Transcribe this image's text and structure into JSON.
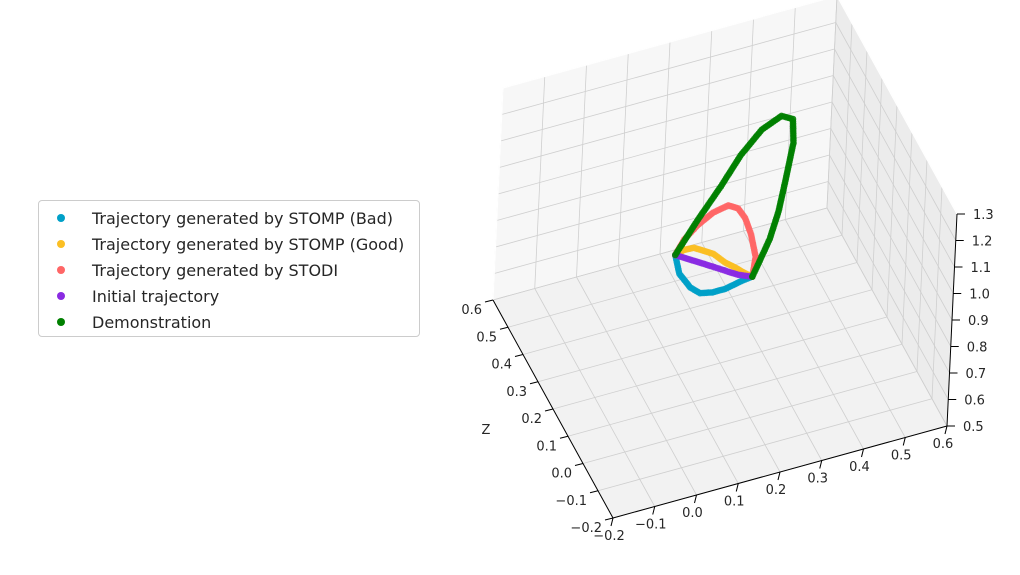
{
  "chart_data": {
    "type": "scatter3d",
    "title": "",
    "xlabel": "",
    "ylabel": "",
    "zlabel": "Z",
    "axis_a_ticks": [
      "−0.2",
      "−0.1",
      "0.0",
      "0.1",
      "0.2",
      "0.3",
      "0.4",
      "0.5",
      "0.6"
    ],
    "axis_b_ticks": [
      "−0.2",
      "−0.1",
      "0.0",
      "0.1",
      "0.2",
      "0.3",
      "0.4",
      "0.5",
      "0.6"
    ],
    "axis_z_ticks": [
      "0.5",
      "0.6",
      "0.7",
      "0.8",
      "0.9",
      "1.0",
      "1.1",
      "1.2",
      "1.3"
    ],
    "xlim": [
      -0.2,
      0.6
    ],
    "ylim": [
      -0.2,
      0.6
    ],
    "zlim": [
      0.5,
      1.3
    ],
    "grid": true,
    "legend_position": "left",
    "series": [
      {
        "name": "Trajectory generated by STOMP (Bad)",
        "color": "#00a0c8",
        "x": [
          0.0,
          0.02,
          0.05,
          0.09,
          0.14,
          0.19,
          0.23,
          0.26,
          0.28
        ],
        "y": [
          0.0,
          0.02,
          0.06,
          0.1,
          0.15,
          0.2,
          0.24,
          0.27,
          0.3
        ],
        "z": [
          1.2,
          1.1,
          1.0,
          0.92,
          0.85,
          0.79,
          0.75,
          0.72,
          0.7
        ]
      },
      {
        "name": "Trajectory generated by STOMP (Good)",
        "color": "#fbbf24",
        "x": [
          0.0,
          0.05,
          0.09,
          0.13,
          0.17,
          0.2,
          0.23,
          0.26,
          0.28
        ],
        "y": [
          0.0,
          0.04,
          0.08,
          0.12,
          0.16,
          0.2,
          0.24,
          0.27,
          0.3
        ],
        "z": [
          1.2,
          1.15,
          1.1,
          1.03,
          0.96,
          0.88,
          0.81,
          0.75,
          0.7
        ]
      },
      {
        "name": "Trajectory generated by STODI",
        "color": "#ff6666",
        "x": [
          0.0,
          0.05,
          0.1,
          0.16,
          0.22,
          0.26,
          0.29,
          0.3,
          0.29,
          0.28
        ],
        "y": [
          0.0,
          0.04,
          0.09,
          0.15,
          0.21,
          0.25,
          0.28,
          0.3,
          0.31,
          0.3
        ],
        "z": [
          1.2,
          1.19,
          1.17,
          1.13,
          1.07,
          1.0,
          0.92,
          0.84,
          0.76,
          0.7
        ]
      },
      {
        "name": "Initial trajectory",
        "color": "#8a2be2",
        "x": [
          0.0,
          0.04,
          0.08,
          0.12,
          0.16,
          0.2,
          0.24,
          0.28
        ],
        "y": [
          0.0,
          0.04,
          0.08,
          0.12,
          0.16,
          0.21,
          0.25,
          0.3
        ],
        "z": [
          1.2,
          1.13,
          1.06,
          0.99,
          0.92,
          0.84,
          0.77,
          0.7
        ]
      },
      {
        "name": "Demonstration",
        "color": "#008000",
        "x": [
          0.0,
          0.08,
          0.17,
          0.26,
          0.34,
          0.4,
          0.43,
          0.42,
          0.38,
          0.34,
          0.31,
          0.29,
          0.28
        ],
        "y": [
          0.0,
          0.08,
          0.17,
          0.25,
          0.33,
          0.4,
          0.44,
          0.44,
          0.41,
          0.38,
          0.35,
          0.32,
          0.3
        ],
        "z": [
          1.2,
          1.21,
          1.21,
          1.2,
          1.18,
          1.14,
          1.08,
          1.0,
          0.92,
          0.85,
          0.79,
          0.74,
          0.7
        ]
      }
    ]
  }
}
